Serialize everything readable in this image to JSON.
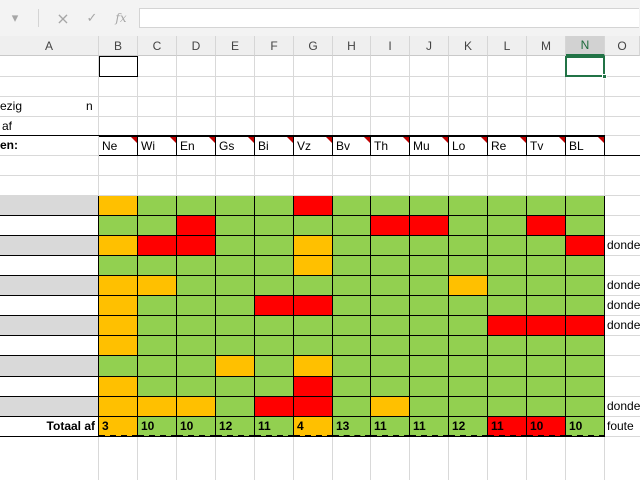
{
  "formula_bar": {
    "dropdown_icon": "▾",
    "cancel_icon": "×",
    "enter_icon": "✓",
    "fx_label": "fx",
    "formula_value": ""
  },
  "columns": [
    "A",
    "B",
    "C",
    "D",
    "E",
    "F",
    "G",
    "H",
    "I",
    "J",
    "K",
    "L",
    "M",
    "N",
    "O"
  ],
  "selected_column": "N",
  "sheet": {
    "a5_text": "ezig",
    "a5_right_text": "n",
    "a6_text": "af",
    "a7_text": "en:",
    "subjects": [
      "Ne",
      "Wi",
      "En",
      "Gs",
      "Bi",
      "Vz",
      "Bv",
      "Th",
      "Mu",
      "Lo",
      "Re",
      "Tv",
      "BL"
    ],
    "grid_status": [
      "OGGGGRGGGGGGG",
      "GGRGGGGRRGGRG",
      "ORRGGOGGGGGGR",
      "GGGGGOGGGGGGG",
      "OOGGGGGGGOGGG",
      "OGGGRRGGGGGGG",
      "OGGGGGGGGGRRR",
      "OGGGGGGGGGGGG",
      "GGGOGOGGGGGGG",
      "OGGGGRGGGGGGG",
      "OOOGRRGOGGGGG",
      "OGGGGOGGGGRRG"
    ],
    "row_shading": [
      "grey",
      "white",
      "grey",
      "white",
      "grey",
      "white",
      "grey",
      "white",
      "grey",
      "white",
      "grey",
      "white"
    ],
    "row_notes": [
      "",
      "",
      "donde",
      "",
      "donde",
      "donde",
      "donde",
      "",
      "",
      "",
      "donde",
      "foute"
    ],
    "totals_label": "Totaal af",
    "totals": [
      "3",
      "10",
      "10",
      "12",
      "11",
      "4",
      "13",
      "11",
      "11",
      "12",
      "11",
      "10",
      "10"
    ]
  },
  "colors": {
    "green": "#92d050",
    "orange": "#ffc000",
    "red": "#ff0000",
    "grey_row": "#d9d9d9",
    "accent": "#217346"
  }
}
